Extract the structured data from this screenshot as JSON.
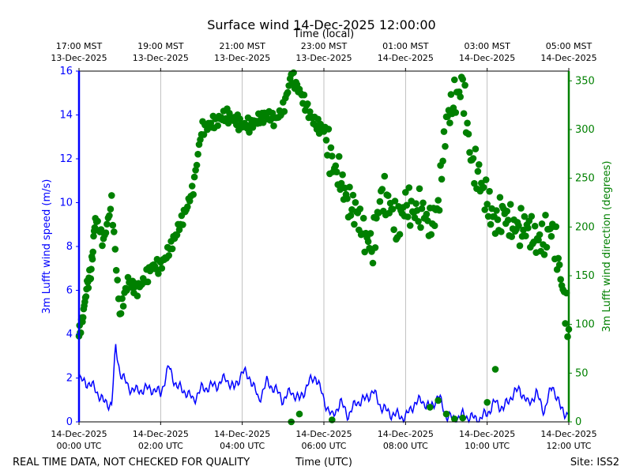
{
  "chart_data": {
    "type": "line+scatter",
    "title": "Surface wind 14-Dec-2025 12:00:00",
    "xlabel_bottom": "Time (UTC)",
    "xlabel_top": "Time (local)",
    "ylabel_left": "3m Lufft wind speed (m/s)",
    "ylabel_right": "3m Lufft wind direction (degrees)",
    "footer_left": "REAL TIME DATA, NOT CHECKED FOR QUALITY",
    "footer_right": "Site: ISS2",
    "xlim_hours": [
      0,
      12
    ],
    "ylim_left": [
      0,
      16
    ],
    "ylim_right": [
      0,
      360
    ],
    "left_ticks": [
      "0",
      "2",
      "4",
      "6",
      "8",
      "10",
      "12",
      "14",
      "16"
    ],
    "right_ticks": [
      "0",
      "50",
      "100",
      "150",
      "200",
      "250",
      "300",
      "350"
    ],
    "bottom_ticks": [
      {
        "line1": "14-Dec-2025",
        "line2": "00:00 UTC"
      },
      {
        "line1": "14-Dec-2025",
        "line2": "02:00 UTC"
      },
      {
        "line1": "14-Dec-2025",
        "line2": "04:00 UTC"
      },
      {
        "line1": "14-Dec-2025",
        "line2": "06:00 UTC"
      },
      {
        "line1": "14-Dec-2025",
        "line2": "08:00 UTC"
      },
      {
        "line1": "14-Dec-2025",
        "line2": "10:00 UTC"
      },
      {
        "line1": "14-Dec-2025",
        "line2": "12:00 UTC"
      }
    ],
    "top_ticks": [
      {
        "line1": "17:00 MST",
        "line2": "13-Dec-2025"
      },
      {
        "line1": "19:00 MST",
        "line2": "13-Dec-2025"
      },
      {
        "line1": "21:00 MST",
        "line2": "13-Dec-2025"
      },
      {
        "line1": "23:00 MST",
        "line2": "13-Dec-2025"
      },
      {
        "line1": "01:00 MST",
        "line2": "14-Dec-2025"
      },
      {
        "line1": "03:00 MST",
        "line2": "14-Dec-2025"
      },
      {
        "line1": "05:00 MST",
        "line2": "14-Dec-2025"
      }
    ],
    "colors": {
      "speed": "#0000ff",
      "direction": "#008000",
      "grid": "#b0b0b0"
    },
    "series": [
      {
        "name": "3m Lufft wind speed",
        "axis": "left",
        "style": "line",
        "x_hours": [
          0,
          0.2,
          0.4,
          0.6,
          0.8,
          0.9,
          1.0,
          1.2,
          1.4,
          1.6,
          1.8,
          2.0,
          2.2,
          2.4,
          2.6,
          2.8,
          3.0,
          3.2,
          3.4,
          3.6,
          3.8,
          4.0,
          4.2,
          4.4,
          4.6,
          4.8,
          5.0,
          5.2,
          5.4,
          5.6,
          5.8,
          6.0,
          6.2,
          6.4,
          6.6,
          6.8,
          7.0,
          7.2,
          7.4,
          7.6,
          7.8,
          8.0,
          8.2,
          8.4,
          8.6,
          8.8,
          9.0,
          9.2,
          9.4,
          9.6,
          9.8,
          10.0,
          10.2,
          10.4,
          10.6,
          10.8,
          11.0,
          11.2,
          11.4,
          11.6,
          11.8,
          12.0
        ],
        "values": [
          1.9,
          1.8,
          1.5,
          0.9,
          0.8,
          3.4,
          2.3,
          1.6,
          1.4,
          1.5,
          1.5,
          1.3,
          2.5,
          1.6,
          1.4,
          1.0,
          1.5,
          1.6,
          1.7,
          2.0,
          1.5,
          2.3,
          2.0,
          1.0,
          1.8,
          1.5,
          1.0,
          1.4,
          1.0,
          1.7,
          2.1,
          1.0,
          0.2,
          0.9,
          0.3,
          0.9,
          1.0,
          1.4,
          0.7,
          0.4,
          0.3,
          0.2,
          0.8,
          1.0,
          0.6,
          1.2,
          0.3,
          0.1,
          0.3,
          0.2,
          0.1,
          0.4,
          0.9,
          0.6,
          1.2,
          1.5,
          0.8,
          1.3,
          0.5,
          1.7,
          0.6,
          0.3
        ]
      },
      {
        "name": "3m Lufft wind direction",
        "axis": "right",
        "style": "dots",
        "x_hours": [
          0,
          0.1,
          0.2,
          0.3,
          0.4,
          0.6,
          0.8,
          1.0,
          1.2,
          1.4,
          1.6,
          1.8,
          2.0,
          2.2,
          2.4,
          2.6,
          2.8,
          3.0,
          3.2,
          3.4,
          3.6,
          3.8,
          4.0,
          4.2,
          4.4,
          4.6,
          4.8,
          5.0,
          5.2,
          5.4,
          5.6,
          5.8,
          6.0,
          6.2,
          6.4,
          6.6,
          6.8,
          7.0,
          7.2,
          7.4,
          7.6,
          7.8,
          8.0,
          8.2,
          8.4,
          8.6,
          8.8,
          9.0,
          9.2,
          9.4,
          9.6,
          9.8,
          10.0,
          10.2,
          10.4,
          10.6,
          10.8,
          11.0,
          11.2,
          11.4,
          11.6,
          11.8,
          12.0
        ],
        "values": [
          88,
          110,
          140,
          155,
          210,
          185,
          225,
          110,
          145,
          135,
          145,
          160,
          160,
          175,
          195,
          215,
          240,
          300,
          305,
          310,
          315,
          310,
          305,
          305,
          310,
          315,
          310,
          320,
          355,
          340,
          320,
          305,
          300,
          265,
          250,
          225,
          215,
          190,
          180,
          235,
          225,
          200,
          225,
          215,
          220,
          200,
          220,
          310,
          330,
          345,
          270,
          250,
          225,
          205,
          215,
          200,
          200,
          200,
          185,
          190,
          200,
          150,
          95
        ],
        "x_extra": [
          8.6,
          8.8,
          9.0,
          9.2,
          9.4,
          10.0,
          10.2,
          6.2,
          5.4,
          5.2
        ],
        "values_extra": [
          15,
          22,
          8,
          3,
          4,
          20,
          54,
          2,
          8,
          0
        ]
      }
    ]
  }
}
